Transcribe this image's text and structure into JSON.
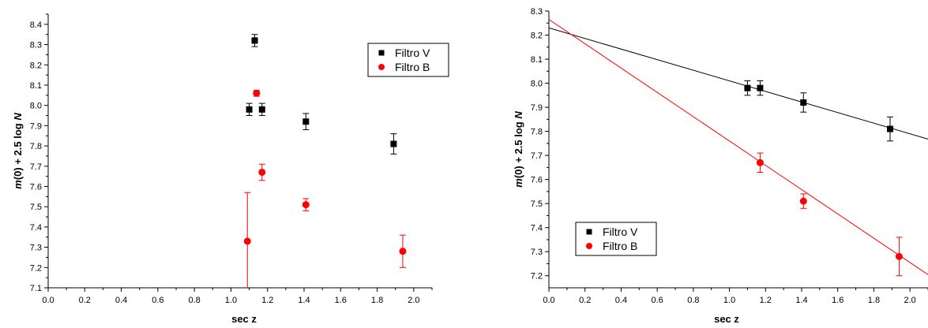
{
  "colors": {
    "series_v": "#000000",
    "series_b": "#ff0000",
    "axis": "#000000"
  },
  "chart_data": [
    {
      "type": "scatter",
      "title": "",
      "xlabel": "sec z",
      "ylabel_parts": [
        "m",
        "(0) + 2.5 log ",
        "N"
      ],
      "xlim": [
        0.0,
        2.1
      ],
      "ylim": [
        7.1,
        8.45
      ],
      "xticks": [
        "0.0",
        "0.2",
        "0.4",
        "0.6",
        "0.8",
        "1.0",
        "1.2",
        "1.4",
        "1.6",
        "1.8",
        "2.0"
      ],
      "yticks": [
        "7.1",
        "7.2",
        "7.3",
        "7.4",
        "7.5",
        "7.6",
        "7.7",
        "7.8",
        "7.9",
        "8.0",
        "8.1",
        "8.2",
        "8.3",
        "8.4"
      ],
      "legend_position": "top-right",
      "series": [
        {
          "name": "Filtro V",
          "marker": "square",
          "color": "#000000",
          "points": [
            {
              "x": 1.1,
              "y": 7.98,
              "err": 0.03
            },
            {
              "x": 1.13,
              "y": 8.32,
              "err": 0.03
            },
            {
              "x": 1.17,
              "y": 7.98,
              "err": 0.03
            },
            {
              "x": 1.41,
              "y": 7.92,
              "err": 0.04
            },
            {
              "x": 1.89,
              "y": 7.81,
              "err": 0.05
            }
          ]
        },
        {
          "name": "Filtro B",
          "marker": "circle",
          "color": "#ff0000",
          "points": [
            {
              "x": 1.09,
              "y": 7.33,
              "err": 0.24
            },
            {
              "x": 1.14,
              "y": 8.06,
              "err": 0.015
            },
            {
              "x": 1.17,
              "y": 7.67,
              "err": 0.04
            },
            {
              "x": 1.41,
              "y": 7.51,
              "err": 0.03
            },
            {
              "x": 1.94,
              "y": 7.28,
              "err": 0.08
            }
          ]
        }
      ]
    },
    {
      "type": "scatter",
      "title": "",
      "xlabel": "sec z",
      "ylabel_parts": [
        "m",
        "(0) + 2.5 log ",
        "N"
      ],
      "xlim": [
        0.0,
        2.1
      ],
      "ylim": [
        7.15,
        8.3
      ],
      "xticks": [
        "0.0",
        "0.2",
        "0.4",
        "0.6",
        "0.8",
        "1.0",
        "1.2",
        "1.4",
        "1.6",
        "1.8",
        "2.0"
      ],
      "yticks": [
        "7.2",
        "7.3",
        "7.4",
        "7.5",
        "7.6",
        "7.7",
        "7.8",
        "7.9",
        "8.0",
        "8.1",
        "8.2",
        "8.3"
      ],
      "legend_position": "bottom-left",
      "series": [
        {
          "name": "Filtro V",
          "marker": "square",
          "color": "#000000",
          "points": [
            {
              "x": 1.1,
              "y": 7.98,
              "err": 0.03
            },
            {
              "x": 1.17,
              "y": 7.98,
              "err": 0.03
            },
            {
              "x": 1.41,
              "y": 7.92,
              "err": 0.04
            },
            {
              "x": 1.89,
              "y": 7.81,
              "err": 0.05
            }
          ],
          "fit": {
            "intercept": 8.23,
            "slope": -0.22
          }
        },
        {
          "name": "Filtro B",
          "marker": "circle",
          "color": "#ff0000",
          "points": [
            {
              "x": 1.17,
              "y": 7.67,
              "err": 0.04
            },
            {
              "x": 1.41,
              "y": 7.51,
              "err": 0.03
            },
            {
              "x": 1.94,
              "y": 7.28,
              "err": 0.08
            }
          ],
          "fit": {
            "intercept": 8.265,
            "slope": -0.505
          }
        }
      ]
    }
  ]
}
